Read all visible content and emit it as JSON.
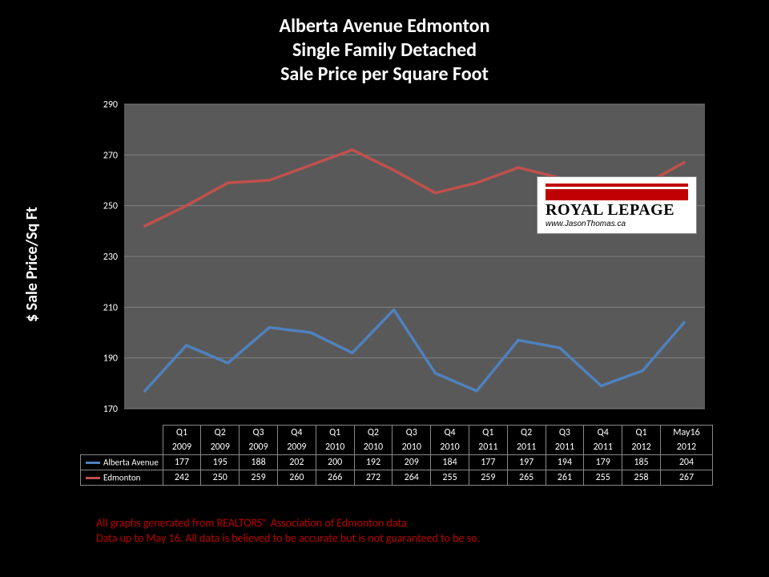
{
  "title": {
    "line1": "Alberta Avenue Edmonton",
    "line2": "Single Family Detached",
    "line3": "Sale Price per Square Foot",
    "color": "#ffffff",
    "fontsize": 24
  },
  "y_axis": {
    "label": "$ Sale Price/Sq Ft",
    "min": 170,
    "max": 290,
    "tick_step": 20,
    "ticks": [
      170,
      190,
      210,
      230,
      250,
      270,
      290
    ],
    "color": "#ffffff",
    "fontsize": 20
  },
  "categories": [
    {
      "l1": "Q1",
      "l2": "2009"
    },
    {
      "l1": "Q2",
      "l2": "2009"
    },
    {
      "l1": "Q3",
      "l2": "2009"
    },
    {
      "l1": "Q4",
      "l2": "2009"
    },
    {
      "l1": "Q1",
      "l2": "2010"
    },
    {
      "l1": "Q2",
      "l2": "2010"
    },
    {
      "l1": "Q3",
      "l2": "2010"
    },
    {
      "l1": "Q4",
      "l2": "2010"
    },
    {
      "l1": "Q1",
      "l2": "2011"
    },
    {
      "l1": "Q2",
      "l2": "2011"
    },
    {
      "l1": "Q3",
      "l2": "2011"
    },
    {
      "l1": "Q4",
      "l2": "2011"
    },
    {
      "l1": "Q1",
      "l2": "2012"
    },
    {
      "l1": "May16",
      "l2": "2012"
    }
  ],
  "series": [
    {
      "name": "Alberta Avenue",
      "color": "#4f81bd",
      "line_width": 3.5,
      "values": [
        177,
        195,
        188,
        202,
        200,
        192,
        209,
        184,
        177,
        197,
        194,
        179,
        185,
        204
      ]
    },
    {
      "name": "Edmonton",
      "color": "#c0504d",
      "line_width": 3.5,
      "values": [
        242,
        250,
        259,
        260,
        266,
        272,
        264,
        255,
        259,
        265,
        261,
        255,
        258,
        267
      ]
    }
  ],
  "chart_style": {
    "type": "line",
    "plot_background": "#595959",
    "page_background": "#000000",
    "gridline_color": "#808080",
    "tick_label_color": "#ffffff",
    "tick_label_fontsize": 12,
    "marker": "none"
  },
  "logo": {
    "brand": "ROYAL LEPAGE",
    "url_text": "www.JasonThomas.ca",
    "bar_color": "#c00000"
  },
  "footnote": {
    "line1": "All graphs generated from REALTORS® Association of Edmonton data",
    "line2": "Data up to May 16.  All data is believed to be accurate but is not guaranteed to be so.",
    "color": "#c00000",
    "fontsize": 14
  }
}
